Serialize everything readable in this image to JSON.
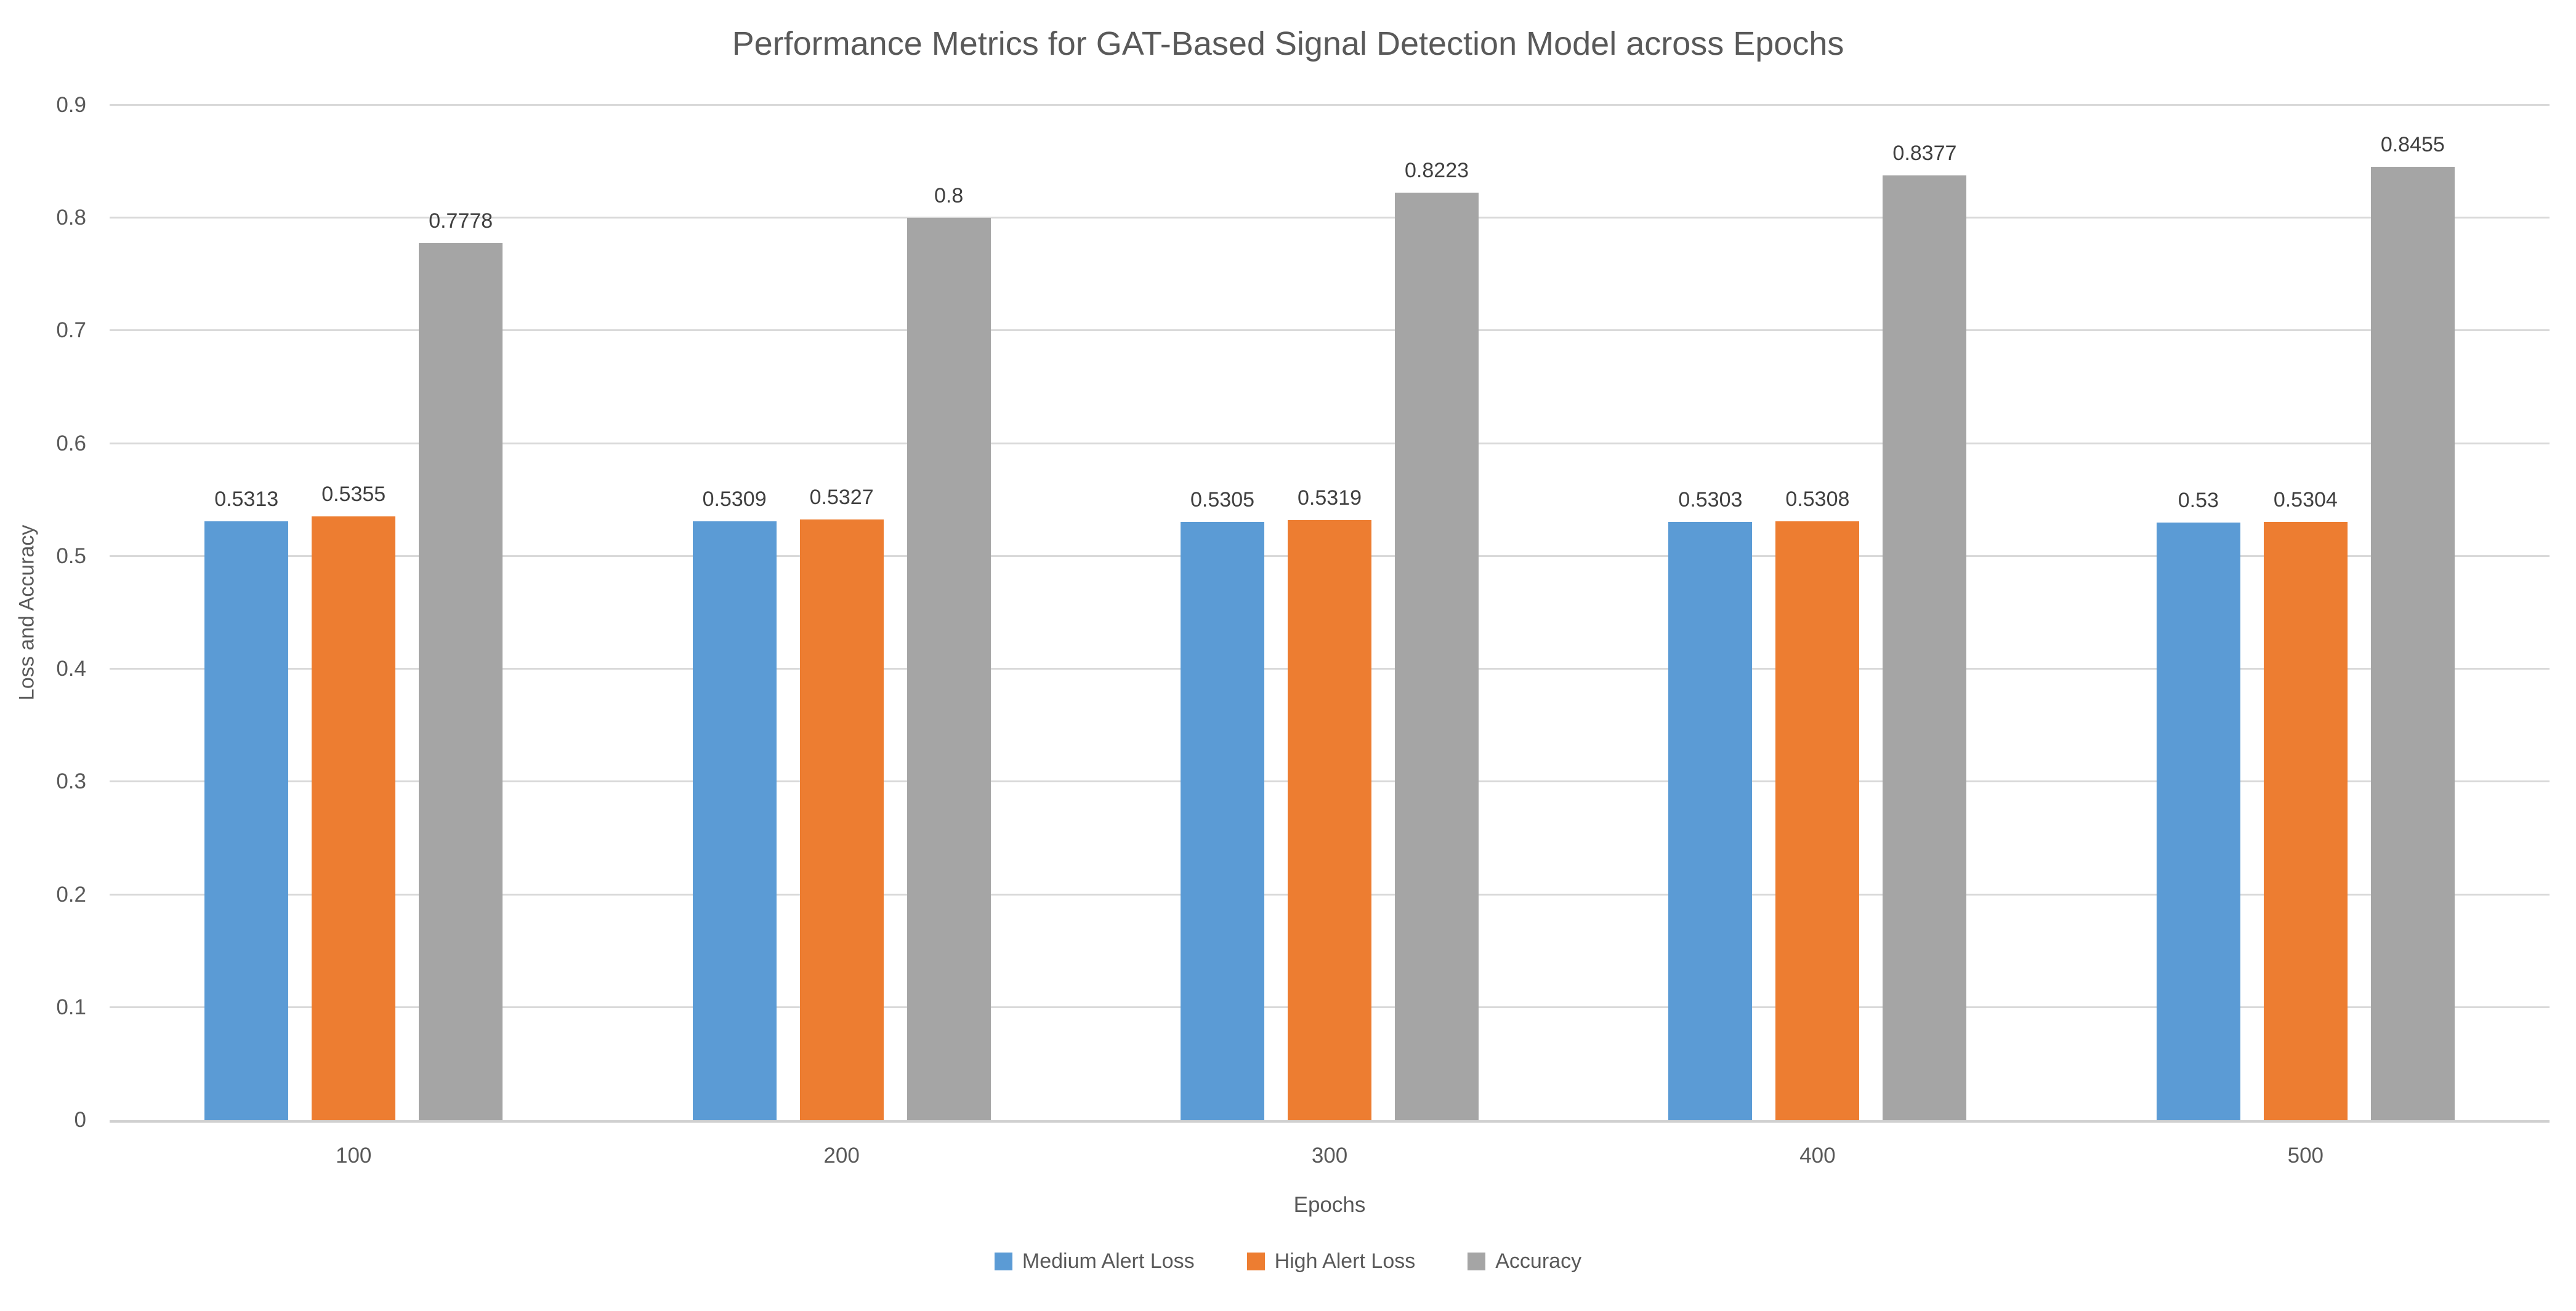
{
  "chart_data": {
    "type": "bar",
    "title": "Performance Metrics for GAT-Based Signal Detection Model across Epochs",
    "xlabel": "Epochs",
    "ylabel": "Loss and Accuracy",
    "categories": [
      "100",
      "200",
      "300",
      "400",
      "500"
    ],
    "series": [
      {
        "name": "Medium Alert Loss",
        "color": "#5B9BD5",
        "values": [
          0.5313,
          0.5309,
          0.5305,
          0.5303,
          0.53
        ],
        "labels": [
          "0.5313",
          "0.5309",
          "0.5305",
          "0.5303",
          "0.53"
        ]
      },
      {
        "name": "High Alert Loss",
        "color": "#ED7D31",
        "values": [
          0.5355,
          0.5327,
          0.5319,
          0.5308,
          0.5304
        ],
        "labels": [
          "0.5355",
          "0.5327",
          "0.5319",
          "0.5308",
          "0.5304"
        ]
      },
      {
        "name": "Accuracy",
        "color": "#A5A5A5",
        "values": [
          0.7778,
          0.8,
          0.8223,
          0.8377,
          0.8455
        ],
        "labels": [
          "0.7778",
          "0.8",
          "0.8223",
          "0.8377",
          "0.8455"
        ]
      }
    ],
    "ylim": [
      0,
      0.9
    ],
    "ytick_step": 0.1,
    "yticks": [
      "0",
      "0.1",
      "0.2",
      "0.3",
      "0.4",
      "0.5",
      "0.6",
      "0.7",
      "0.8",
      "0.9"
    ],
    "grid": true,
    "grid_color": "#D9D9D9",
    "axis_line_color": "#D0D0D0",
    "axis_text_color": "#595959",
    "value_label_color": "#404040",
    "legend_position": "bottom"
  }
}
